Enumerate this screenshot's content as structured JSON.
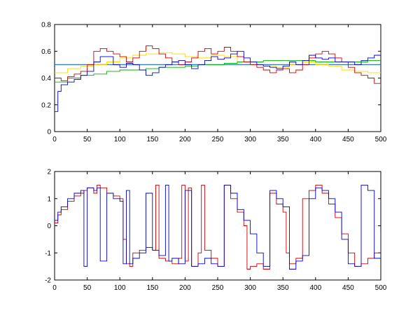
{
  "chart_data": [
    {
      "type": "line",
      "xlim": [
        0,
        500
      ],
      "ylim": [
        0,
        0.8
      ],
      "xticks": [
        0,
        50,
        100,
        150,
        200,
        250,
        300,
        350,
        400,
        450,
        500
      ],
      "yticks": [
        0,
        0.2,
        0.4,
        0.6,
        0.8
      ],
      "xtick_labels": [
        "0",
        "50",
        "100",
        "150",
        "200",
        "250",
        "300",
        "350",
        "400",
        "450",
        "500"
      ],
      "ytick_labels": [
        "0",
        "0.2",
        "0.4",
        "0.6",
        "0.8"
      ],
      "grid": false,
      "hlines": [
        {
          "y": 0.5,
          "color": "#000000"
        },
        {
          "y": 0.5,
          "color": "#3a7fd6"
        }
      ],
      "series": [
        {
          "color": "#ffd700",
          "x": [
            0,
            20,
            40,
            60,
            80,
            100,
            120,
            140,
            160,
            180,
            200,
            220,
            240,
            260,
            280,
            300,
            320,
            340,
            360,
            380,
            400,
            420,
            440,
            460,
            480,
            500
          ],
          "y": [
            0.44,
            0.47,
            0.49,
            0.5,
            0.52,
            0.55,
            0.57,
            0.58,
            0.59,
            0.58,
            0.56,
            0.55,
            0.57,
            0.56,
            0.52,
            0.5,
            0.49,
            0.48,
            0.5,
            0.52,
            0.5,
            0.49,
            0.46,
            0.45,
            0.44,
            0.44
          ]
        },
        {
          "color": "#00b000",
          "x": [
            0,
            20,
            40,
            60,
            80,
            100,
            120,
            140,
            160,
            180,
            200,
            220,
            240,
            260,
            280,
            300,
            320,
            340,
            360,
            380,
            400,
            420,
            440,
            460,
            480,
            500
          ],
          "y": [
            0.37,
            0.4,
            0.42,
            0.43,
            0.45,
            0.46,
            0.46,
            0.47,
            0.48,
            0.48,
            0.49,
            0.5,
            0.5,
            0.51,
            0.52,
            0.52,
            0.53,
            0.53,
            0.53,
            0.53,
            0.52,
            0.52,
            0.52,
            0.52,
            0.53,
            0.53
          ]
        },
        {
          "color": "#cc0000",
          "x": [
            0,
            10,
            20,
            30,
            40,
            50,
            60,
            70,
            80,
            90,
            100,
            110,
            120,
            130,
            140,
            150,
            160,
            170,
            180,
            190,
            200,
            210,
            220,
            230,
            240,
            250,
            260,
            270,
            280,
            290,
            300,
            310,
            320,
            330,
            340,
            350,
            360,
            370,
            380,
            390,
            400,
            410,
            420,
            430,
            440,
            450,
            460,
            470,
            480,
            490,
            500
          ],
          "y": [
            0.4,
            0.38,
            0.41,
            0.43,
            0.45,
            0.5,
            0.6,
            0.62,
            0.6,
            0.58,
            0.56,
            0.52,
            0.55,
            0.6,
            0.64,
            0.62,
            0.58,
            0.55,
            0.52,
            0.5,
            0.52,
            0.55,
            0.6,
            0.62,
            0.58,
            0.6,
            0.63,
            0.6,
            0.56,
            0.52,
            0.5,
            0.48,
            0.46,
            0.44,
            0.46,
            0.47,
            0.44,
            0.46,
            0.5,
            0.55,
            0.58,
            0.6,
            0.58,
            0.55,
            0.52,
            0.48,
            0.44,
            0.42,
            0.4,
            0.36,
            0.33
          ]
        },
        {
          "color": "#0000cc",
          "x": [
            0,
            5,
            10,
            20,
            30,
            40,
            50,
            60,
            70,
            80,
            90,
            100,
            110,
            120,
            130,
            140,
            150,
            160,
            170,
            180,
            190,
            200,
            210,
            220,
            230,
            240,
            250,
            260,
            270,
            280,
            290,
            300,
            310,
            320,
            330,
            340,
            350,
            360,
            370,
            380,
            390,
            400,
            410,
            420,
            430,
            440,
            450,
            460,
            470,
            480,
            490,
            500
          ],
          "y": [
            0.15,
            0.3,
            0.35,
            0.37,
            0.39,
            0.42,
            0.45,
            0.52,
            0.56,
            0.56,
            0.5,
            0.48,
            0.51,
            0.5,
            0.46,
            0.42,
            0.44,
            0.48,
            0.5,
            0.52,
            0.53,
            0.5,
            0.47,
            0.5,
            0.53,
            0.56,
            0.54,
            0.55,
            0.58,
            0.6,
            0.55,
            0.52,
            0.5,
            0.49,
            0.48,
            0.47,
            0.49,
            0.52,
            0.5,
            0.53,
            0.57,
            0.55,
            0.54,
            0.55,
            0.52,
            0.52,
            0.52,
            0.5,
            0.53,
            0.55,
            0.57,
            0.6
          ]
        }
      ]
    },
    {
      "type": "line",
      "xlim": [
        0,
        500
      ],
      "ylim": [
        -2,
        2
      ],
      "xticks": [
        0,
        50,
        100,
        150,
        200,
        250,
        300,
        350,
        400,
        450,
        500
      ],
      "yticks": [
        -2,
        -1,
        0,
        1,
        2
      ],
      "xtick_labels": [
        "0",
        "50",
        "100",
        "150",
        "200",
        "250",
        "300",
        "350",
        "400",
        "450",
        "500"
      ],
      "ytick_labels": [
        "-2",
        "-1",
        "0",
        "1",
        "2"
      ],
      "grid": false,
      "series": [
        {
          "color": "#cc0000",
          "x": [
            0,
            5,
            10,
            20,
            30,
            40,
            45,
            50,
            60,
            65,
            70,
            80,
            90,
            100,
            105,
            110,
            115,
            120,
            130,
            140,
            150,
            155,
            160,
            170,
            180,
            190,
            195,
            200,
            205,
            210,
            220,
            225,
            230,
            240,
            250,
            260,
            270,
            280,
            290,
            295,
            300,
            310,
            320,
            330,
            340,
            350,
            355,
            360,
            370,
            380,
            390,
            400,
            410,
            420,
            430,
            440,
            450,
            460,
            470,
            480,
            490,
            500
          ],
          "y": [
            0.1,
            0.4,
            0.6,
            0.9,
            1.1,
            1.2,
            1.3,
            1.4,
            1.2,
            1.5,
            1.4,
            1.2,
            1.1,
            1.0,
            -0.5,
            -1.4,
            -1.5,
            -1.0,
            -0.9,
            -0.8,
            -0.9,
            1.5,
            -1.2,
            -1.3,
            -1.4,
            -1.2,
            1.5,
            -1.3,
            1.4,
            -1.5,
            -1.0,
            1.5,
            -0.9,
            -1.2,
            -1.5,
            1.5,
            1.0,
            0.5,
            0.0,
            -1.6,
            -1.5,
            -1.4,
            -1.6,
            1.2,
            0.8,
            0.5,
            -1.0,
            -1.4,
            -1.2,
            1.0,
            1.3,
            1.5,
            1.2,
            0.8,
            0.3,
            -0.3,
            -1.0,
            -1.5,
            -1.4,
            -1.2,
            -1.0,
            -0.8
          ]
        },
        {
          "color": "#0000cc",
          "x": [
            0,
            5,
            10,
            20,
            30,
            40,
            45,
            50,
            60,
            65,
            70,
            80,
            90,
            100,
            105,
            110,
            115,
            120,
            130,
            140,
            150,
            160,
            170,
            175,
            180,
            190,
            200,
            210,
            220,
            230,
            240,
            250,
            260,
            270,
            280,
            290,
            300,
            310,
            320,
            330,
            340,
            350,
            360,
            370,
            380,
            390,
            400,
            410,
            420,
            430,
            440,
            450,
            460,
            470,
            480,
            490,
            500
          ],
          "y": [
            0.2,
            0.5,
            0.7,
            1.0,
            1.2,
            1.3,
            -1.5,
            1.4,
            1.3,
            1.4,
            -1.3,
            1.2,
            1.0,
            0.9,
            -1.4,
            1.3,
            -1.4,
            -1.2,
            -1.0,
            1.2,
            -0.9,
            -1.1,
            1.5,
            -1.3,
            -1.2,
            -1.4,
            1.3,
            -1.5,
            -1.4,
            -1.2,
            -1.4,
            -1.5,
            1.5,
            1.2,
            0.6,
            0.2,
            -0.3,
            -1.0,
            -1.5,
            1.3,
            1.0,
            0.7,
            -1.6,
            -1.3,
            -1.1,
            1.0,
            1.4,
            1.3,
            1.0,
            0.5,
            -0.5,
            -1.4,
            -1.5,
            1.5,
            1.3,
            -1.2,
            -0.2
          ]
        }
      ]
    }
  ]
}
